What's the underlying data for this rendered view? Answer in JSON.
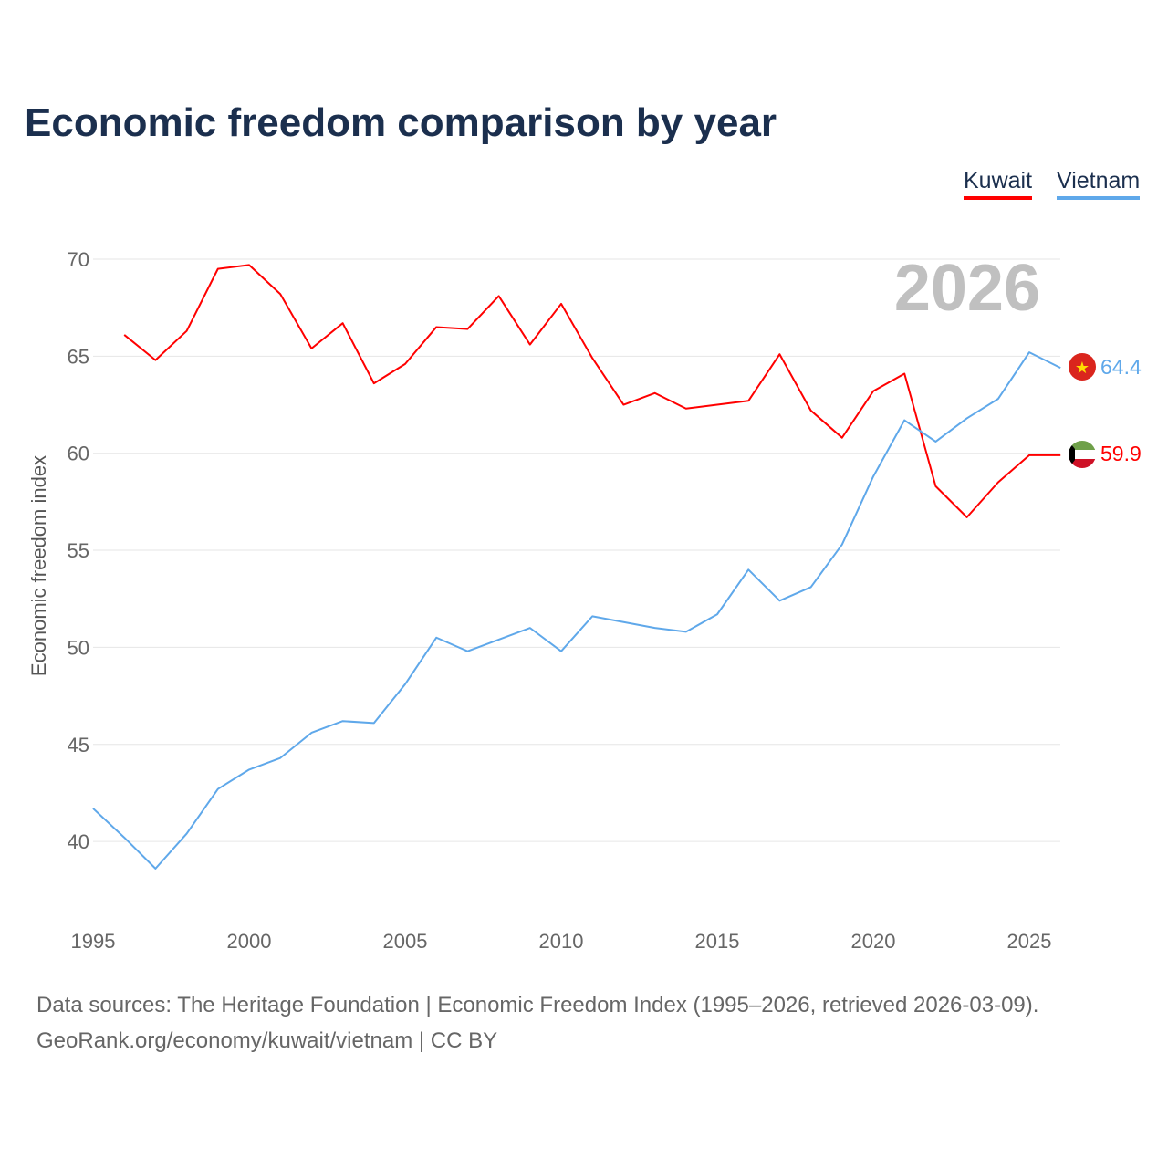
{
  "chart_data": {
    "type": "line",
    "title": "Economic freedom comparison by year",
    "xlabel": "",
    "ylabel": "Economic freedom index",
    "xlim": [
      1995,
      2026
    ],
    "ylim": [
      37,
      72
    ],
    "xticks": [
      1995,
      2000,
      2005,
      2010,
      2015,
      2020,
      2025
    ],
    "yticks": [
      40,
      45,
      50,
      55,
      60,
      65,
      70
    ],
    "grid": true,
    "legend_position": "top-right",
    "year_label": "2026",
    "series": [
      {
        "name": "Kuwait",
        "color": "#ff0000",
        "end_label": "59.9",
        "x": [
          1996,
          1997,
          1998,
          1999,
          2000,
          2001,
          2002,
          2003,
          2004,
          2005,
          2006,
          2007,
          2008,
          2009,
          2010,
          2011,
          2012,
          2013,
          2014,
          2015,
          2016,
          2017,
          2018,
          2019,
          2020,
          2021,
          2022,
          2023,
          2024,
          2025,
          2026
        ],
        "values": [
          66.1,
          64.8,
          66.3,
          69.5,
          69.7,
          68.2,
          65.4,
          66.7,
          63.6,
          64.6,
          66.5,
          66.4,
          68.1,
          65.6,
          67.7,
          64.9,
          62.5,
          63.1,
          62.3,
          62.5,
          62.7,
          65.1,
          62.2,
          60.8,
          63.2,
          64.1,
          58.3,
          56.7,
          58.5,
          59.9,
          59.9
        ]
      },
      {
        "name": "Vietnam",
        "color": "#5fa8ea",
        "end_label": "64.4",
        "x": [
          1995,
          1996,
          1997,
          1998,
          1999,
          2000,
          2001,
          2002,
          2003,
          2004,
          2005,
          2006,
          2007,
          2008,
          2009,
          2010,
          2011,
          2012,
          2013,
          2014,
          2015,
          2016,
          2017,
          2018,
          2019,
          2020,
          2021,
          2022,
          2023,
          2024,
          2025,
          2026
        ],
        "values": [
          41.7,
          40.2,
          38.6,
          40.4,
          42.7,
          43.7,
          44.3,
          45.6,
          46.2,
          46.1,
          48.1,
          50.5,
          49.8,
          50.4,
          51.0,
          49.8,
          51.6,
          51.3,
          51.0,
          50.8,
          51.7,
          54.0,
          52.4,
          53.1,
          55.3,
          58.8,
          61.7,
          60.6,
          61.8,
          62.8,
          65.2,
          64.4
        ]
      }
    ]
  },
  "footer": {
    "line1": "Data sources: The Heritage Foundation | Economic Freedom Index (1995–2026, retrieved 2026-03-09).",
    "line2": "GeoRank.org/economy/kuwait/vietnam | CC BY"
  }
}
